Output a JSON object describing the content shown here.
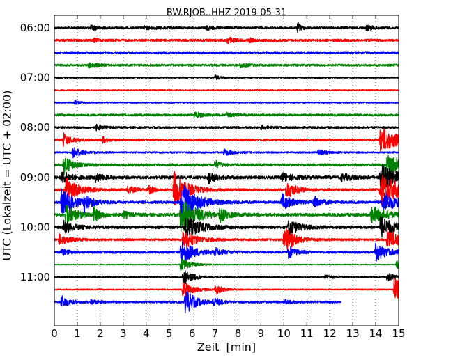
{
  "chart_data": {
    "type": "line",
    "title": "BW.RJOB..HHZ 2019-05-31",
    "xlabel": "Zeit  [min]",
    "ylabel": "UTC (Lokalzeit = UTC + 02:00)",
    "xlim": [
      0,
      15
    ],
    "x_ticks": [
      "0",
      "1",
      "2",
      "3",
      "4",
      "5",
      "6",
      "7",
      "8",
      "9",
      "10",
      "11",
      "12",
      "13",
      "14",
      "15"
    ],
    "y_ticks": [
      "06:00",
      "07:00",
      "08:00",
      "09:00",
      "10:00",
      "11:00"
    ],
    "y_tick_rows": [
      0,
      4,
      8,
      12,
      16,
      20
    ],
    "grid": "vertical dotted",
    "row_interval_minutes": 15,
    "row_colors": [
      "#000000",
      "#ff0000",
      "#0000ff",
      "#008000"
    ],
    "series": [
      {
        "start": "06:00",
        "end_min": 15,
        "noise": 0.25,
        "events": [
          [
            1.6,
            0.6,
            0.3
          ],
          [
            3.9,
            0.3,
            0.8
          ],
          [
            6.6,
            0.5,
            0.3
          ],
          [
            10.6,
            1.2,
            0.15
          ],
          [
            13.6,
            0.6,
            0.3
          ]
        ]
      },
      {
        "start": "06:15",
        "end_min": 15,
        "noise": 0.3,
        "events": [
          [
            1.7,
            0.4,
            0.2
          ],
          [
            7.5,
            0.8,
            0.3
          ],
          [
            8.5,
            0.4,
            0.2
          ]
        ]
      },
      {
        "start": "06:30",
        "end_min": 15,
        "noise": 0.3,
        "events": []
      },
      {
        "start": "06:45",
        "end_min": 15,
        "noise": 0.25,
        "events": [
          [
            1.5,
            0.6,
            0.3
          ],
          [
            8.1,
            0.5,
            0.3
          ]
        ]
      },
      {
        "start": "07:00",
        "end_min": 15,
        "noise": 0.15,
        "events": [
          [
            7.0,
            0.6,
            0.2
          ]
        ]
      },
      {
        "start": "07:15",
        "end_min": 15,
        "noise": 0.15,
        "events": []
      },
      {
        "start": "07:30",
        "end_min": 15,
        "noise": 0.15,
        "events": [
          [
            0.9,
            0.5,
            0.2
          ]
        ]
      },
      {
        "start": "07:45",
        "end_min": 15,
        "noise": 0.25,
        "events": [
          [
            6.1,
            0.7,
            0.3
          ],
          [
            7.5,
            0.5,
            0.3
          ]
        ]
      },
      {
        "start": "08:00",
        "end_min": 15,
        "noise": 0.25,
        "events": [
          [
            1.8,
            0.6,
            0.3
          ],
          [
            9.0,
            0.4,
            0.3
          ]
        ]
      },
      {
        "start": "08:15",
        "end_min": 15,
        "noise": 0.25,
        "events": [
          [
            0.4,
            1.6,
            0.3
          ],
          [
            2.1,
            0.7,
            0.2
          ],
          [
            14.2,
            3.0,
            0.8
          ]
        ]
      },
      {
        "start": "08:30",
        "end_min": 15,
        "noise": 0.2,
        "events": [
          [
            0.8,
            1.5,
            0.3
          ],
          [
            7.4,
            0.8,
            0.3
          ],
          [
            11.5,
            0.6,
            0.3
          ]
        ]
      },
      {
        "start": "08:45",
        "end_min": 15,
        "noise": 0.3,
        "events": [
          [
            0.4,
            2.5,
            0.3
          ],
          [
            7.0,
            1.0,
            0.2
          ],
          [
            14.5,
            3.0,
            0.6
          ]
        ]
      },
      {
        "start": "09:00",
        "end_min": 15,
        "noise": 0.35,
        "events": [
          [
            0.3,
            1.5,
            0.4
          ],
          [
            1.8,
            1.0,
            0.3
          ],
          [
            6.7,
            1.5,
            0.3
          ],
          [
            9.9,
            1.0,
            0.5
          ],
          [
            12.5,
            0.8,
            0.5
          ],
          [
            14.2,
            3.0,
            0.7
          ]
        ]
      },
      {
        "start": "09:15",
        "end_min": 15,
        "noise": 0.3,
        "events": [
          [
            0.5,
            3.0,
            0.5
          ],
          [
            3.2,
            0.8,
            0.3
          ],
          [
            4.1,
            0.9,
            0.2
          ],
          [
            5.2,
            4.5,
            0.5
          ],
          [
            10.1,
            2.0,
            0.4
          ],
          [
            14.2,
            4.0,
            0.8
          ]
        ]
      },
      {
        "start": "09:30",
        "end_min": 15,
        "noise": 0.3,
        "events": [
          [
            0.3,
            3.0,
            0.5
          ],
          [
            1.3,
            2.0,
            0.3
          ],
          [
            5.5,
            5.0,
            0.6
          ],
          [
            9.9,
            2.0,
            0.4
          ],
          [
            11.3,
            1.5,
            0.3
          ],
          [
            14.3,
            2.5,
            0.6
          ]
        ]
      },
      {
        "start": "09:45",
        "end_min": 15,
        "noise": 0.35,
        "events": [
          [
            0.5,
            2.5,
            0.4
          ],
          [
            1.7,
            1.5,
            0.3
          ],
          [
            3.0,
            0.8,
            0.3
          ],
          [
            5.5,
            4.5,
            0.6
          ],
          [
            7.2,
            1.5,
            0.3
          ],
          [
            13.8,
            2.0,
            0.6
          ]
        ]
      },
      {
        "start": "10:00",
        "end_min": 15,
        "noise": 0.35,
        "events": [
          [
            0.4,
            1.5,
            0.4
          ],
          [
            5.7,
            3.5,
            0.5
          ],
          [
            10.2,
            2.0,
            0.4
          ],
          [
            14.2,
            2.5,
            0.6
          ]
        ]
      },
      {
        "start": "10:15",
        "end_min": 15,
        "noise": 0.25,
        "events": [
          [
            0.2,
            1.3,
            0.4
          ],
          [
            5.6,
            2.5,
            0.5
          ],
          [
            10.0,
            3.5,
            0.4
          ],
          [
            14.5,
            2.5,
            0.6
          ]
        ]
      },
      {
        "start": "10:30",
        "end_min": 15,
        "noise": 0.3,
        "events": [
          [
            0.3,
            0.7,
            0.3
          ],
          [
            5.5,
            3.0,
            0.5
          ],
          [
            7.0,
            0.8,
            0.3
          ],
          [
            10.2,
            1.5,
            0.3
          ],
          [
            14.0,
            2.0,
            0.5
          ]
        ]
      },
      {
        "start": "10:45",
        "end_min": 15,
        "noise": 0.1,
        "events": [
          [
            5.5,
            1.5,
            0.4
          ],
          [
            14.9,
            1.2,
            0.3
          ]
        ]
      },
      {
        "start": "11:00",
        "end_min": 15,
        "noise": 0.15,
        "events": [
          [
            5.6,
            2.0,
            0.4
          ],
          [
            11.8,
            0.6,
            0.3
          ],
          [
            14.5,
            1.0,
            0.3
          ]
        ]
      },
      {
        "start": "11:15",
        "end_min": 15,
        "noise": 0.15,
        "events": [
          [
            5.6,
            2.0,
            0.4
          ],
          [
            7.0,
            1.2,
            0.3
          ],
          [
            14.8,
            3.0,
            0.5
          ]
        ]
      },
      {
        "start": "11:30",
        "end_min": 12.5,
        "noise": 0.25,
        "events": [
          [
            0.3,
            1.5,
            0.3
          ],
          [
            1.6,
            0.5,
            0.3
          ],
          [
            5.7,
            3.0,
            0.4
          ],
          [
            6.9,
            1.0,
            0.3
          ],
          [
            10.0,
            0.5,
            0.3
          ]
        ]
      }
    ]
  }
}
